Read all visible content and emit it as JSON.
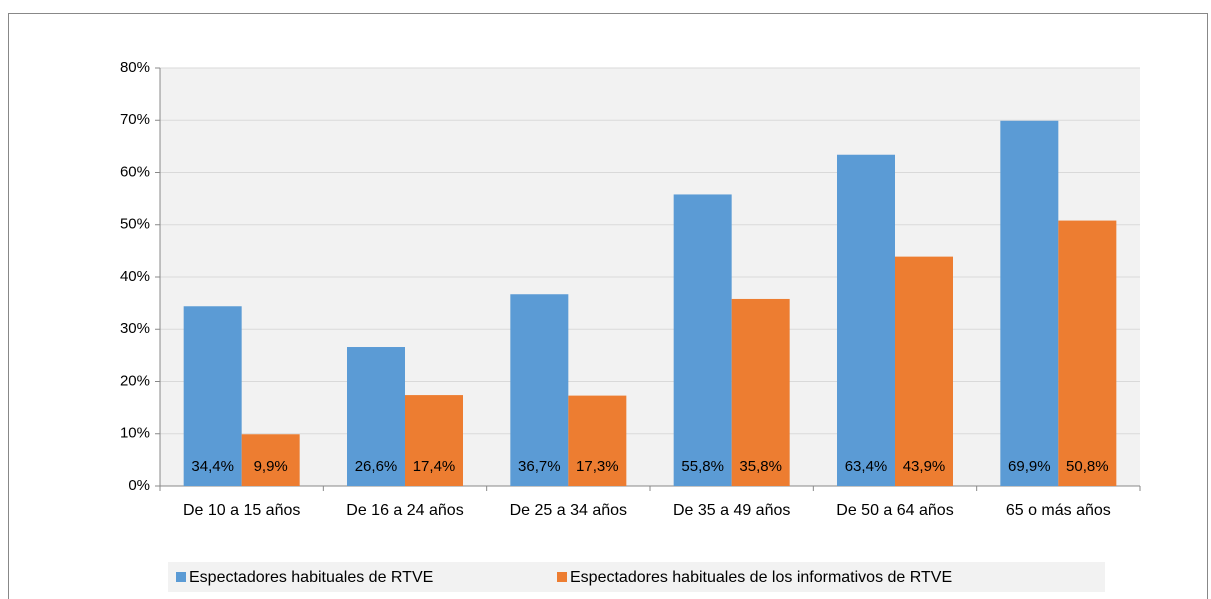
{
  "chart_data": {
    "type": "bar",
    "categories": [
      "De 10 a 15 años",
      "De 16 a 24 años",
      "De 25 a 34 años",
      "De 35 a 49 años",
      "De 50 a 64 años",
      "65 o más años"
    ],
    "series": [
      {
        "name": "Espectadores habituales de RTVE",
        "color": "#5b9bd5",
        "values": [
          34.4,
          26.6,
          36.7,
          55.8,
          63.4,
          69.9
        ],
        "value_labels": [
          "34,4%",
          "26,6%",
          "36,7%",
          "55,8%",
          "63,4%",
          "69,9%"
        ]
      },
      {
        "name": "Espectadores habituales de los informativos de RTVE",
        "color": "#ed7d31",
        "values": [
          9.9,
          17.4,
          17.3,
          35.8,
          43.9,
          50.8
        ],
        "value_labels": [
          "9,9%",
          "17,4%",
          "17,3%",
          "35,8%",
          "43,9%",
          "50,8%"
        ]
      }
    ],
    "ylim": [
      0,
      80
    ],
    "yticks": [
      {
        "value": 0,
        "label": "0%"
      },
      {
        "value": 10,
        "label": "10%"
      },
      {
        "value": 20,
        "label": "20%"
      },
      {
        "value": 30,
        "label": "30%"
      },
      {
        "value": 40,
        "label": "40%"
      },
      {
        "value": 50,
        "label": "50%"
      },
      {
        "value": 60,
        "label": "60%"
      },
      {
        "value": 70,
        "label": "70%"
      },
      {
        "value": 80,
        "label": "80%"
      }
    ],
    "grid": true,
    "legend": "bottom"
  }
}
